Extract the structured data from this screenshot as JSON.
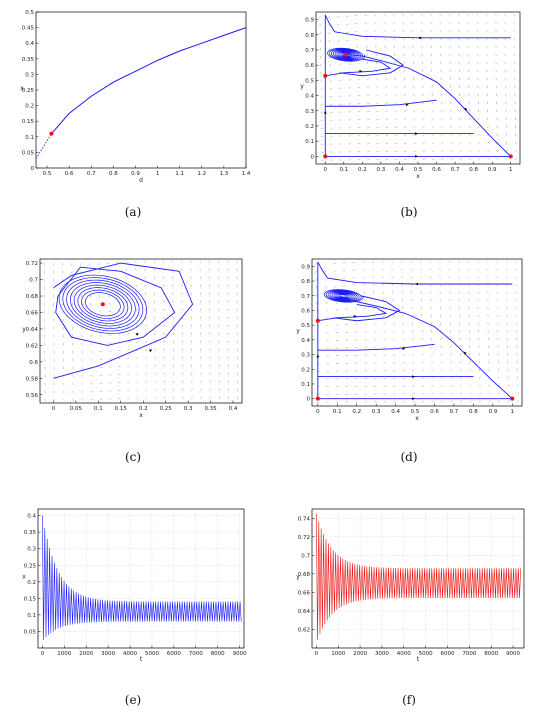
{
  "colors": {
    "curve": "#1a1aff",
    "series_red": "#ee1111",
    "marker": "#ee1111",
    "arrow": "#000000"
  },
  "captions": [
    "(a)",
    "(b)",
    "(c)",
    "(d)",
    "(e)",
    "(f)"
  ],
  "chart_data": [
    {
      "panel": "a",
      "type": "line",
      "xlabel": "d",
      "ylabel": "x",
      "xlim": [
        0.45,
        1.4
      ],
      "ylim": [
        0,
        0.5
      ],
      "xticks": [
        "0.5",
        "0.6",
        "0.7",
        "0.8",
        "0.9",
        "1",
        "1.1",
        "1.2",
        "1.3",
        "1.4"
      ],
      "yticks": [
        "0",
        "0.05",
        "0.1",
        "0.15",
        "0.2",
        "0.25",
        "0.3",
        "0.35",
        "0.4",
        "0.45",
        "0.5"
      ],
      "series": [
        {
          "x": [
            0.52,
            0.6,
            0.7,
            0.8,
            0.9,
            1.0,
            1.1,
            1.2,
            1.3,
            1.4
          ],
          "y": [
            0.11,
            0.175,
            0.23,
            0.275,
            0.31,
            0.345,
            0.375,
            0.4,
            0.425,
            0.45
          ]
        }
      ],
      "dashed": {
        "x": [
          0.45,
          0.52
        ],
        "y": [
          0.03,
          0.11
        ]
      },
      "markers": [
        {
          "x": 0.52,
          "y": 0.11
        }
      ]
    },
    {
      "panel": "b",
      "type": "phase",
      "xlabel": "x",
      "ylabel": "y",
      "xlim": [
        -0.05,
        1.05
      ],
      "ylim": [
        -0.05,
        0.95
      ],
      "xticks": [
        "0",
        "0.1",
        "0.2",
        "0.3",
        "0.4",
        "0.5",
        "0.6",
        "0.7",
        "0.8",
        "0.9",
        "1"
      ],
      "yticks": [
        "0",
        "0.1",
        "0.2",
        "0.3",
        "0.4",
        "0.5",
        "0.6",
        "0.7",
        "0.8",
        "0.9"
      ],
      "focus": {
        "x": 0.11,
        "y": 0.67
      },
      "markers": [
        {
          "x": 0.11,
          "y": 0.67
        },
        {
          "x": 0,
          "y": 0
        },
        {
          "x": 1,
          "y": 0
        },
        {
          "x": 0,
          "y": 0.53
        }
      ]
    },
    {
      "panel": "c",
      "type": "phase",
      "xlabel": "x",
      "ylabel": "y",
      "xlim": [
        -0.03,
        0.42
      ],
      "ylim": [
        0.55,
        0.725
      ],
      "xticks": [
        "0",
        "0.05",
        "0.1",
        "0.15",
        "0.2",
        "0.25",
        "0.3",
        "0.35",
        "0.4"
      ],
      "yticks": [
        "0.56",
        "0.58",
        "0.6",
        "0.62",
        "0.64",
        "0.66",
        "0.68",
        "0.7",
        "0.72"
      ],
      "focus": {
        "x": 0.11,
        "y": 0.67
      },
      "markers": [
        {
          "x": 0.11,
          "y": 0.67
        }
      ]
    },
    {
      "panel": "d",
      "type": "phase",
      "xlabel": "x",
      "ylabel": "y",
      "xlim": [
        -0.03,
        1.05
      ],
      "ylim": [
        -0.05,
        0.95
      ],
      "xticks": [
        "0",
        "0.1",
        "0.2",
        "0.3",
        "0.4",
        "0.5",
        "0.6",
        "0.7",
        "0.8",
        "0.9",
        "1"
      ],
      "yticks": [
        "0",
        "0.1",
        "0.2",
        "0.3",
        "0.4",
        "0.5",
        "0.6",
        "0.7",
        "0.8",
        "0.9"
      ],
      "focus": {
        "x": 0.13,
        "y": 0.7
      },
      "markers": [
        {
          "x": 0,
          "y": 0
        },
        {
          "x": 1,
          "y": 0
        },
        {
          "x": 0,
          "y": 0.53
        }
      ]
    },
    {
      "panel": "e",
      "type": "line",
      "xlabel": "t",
      "ylabel": "x",
      "xlim": [
        -200,
        9200
      ],
      "ylim": [
        0,
        0.42
      ],
      "xticks": [
        "0",
        "1000",
        "2000",
        "3000",
        "4000",
        "5000",
        "6000",
        "7000",
        "8000",
        "9000"
      ],
      "yticks": [
        "0.05",
        "0.1",
        "0.15",
        "0.2",
        "0.25",
        "0.3",
        "0.35",
        "0.4"
      ],
      "oscillation": {
        "start": 0.4,
        "low_start": 0.02,
        "mid": 0.11,
        "amp_final": 0.03,
        "period": 110
      }
    },
    {
      "panel": "f",
      "type": "line",
      "xlabel": "t",
      "ylabel": "y",
      "xlim": [
        -200,
        9500
      ],
      "ylim": [
        0.6,
        0.75
      ],
      "xticks": [
        "0",
        "1000",
        "2000",
        "3000",
        "4000",
        "5000",
        "6000",
        "7000",
        "8000",
        "9000"
      ],
      "yticks": [
        "0.62",
        "0.64",
        "0.66",
        "0.68",
        "0.7",
        "0.72",
        "0.74"
      ],
      "oscillation": {
        "start": 0.745,
        "low_start": 0.605,
        "mid": 0.67,
        "amp_final": 0.016,
        "period": 110
      }
    }
  ]
}
